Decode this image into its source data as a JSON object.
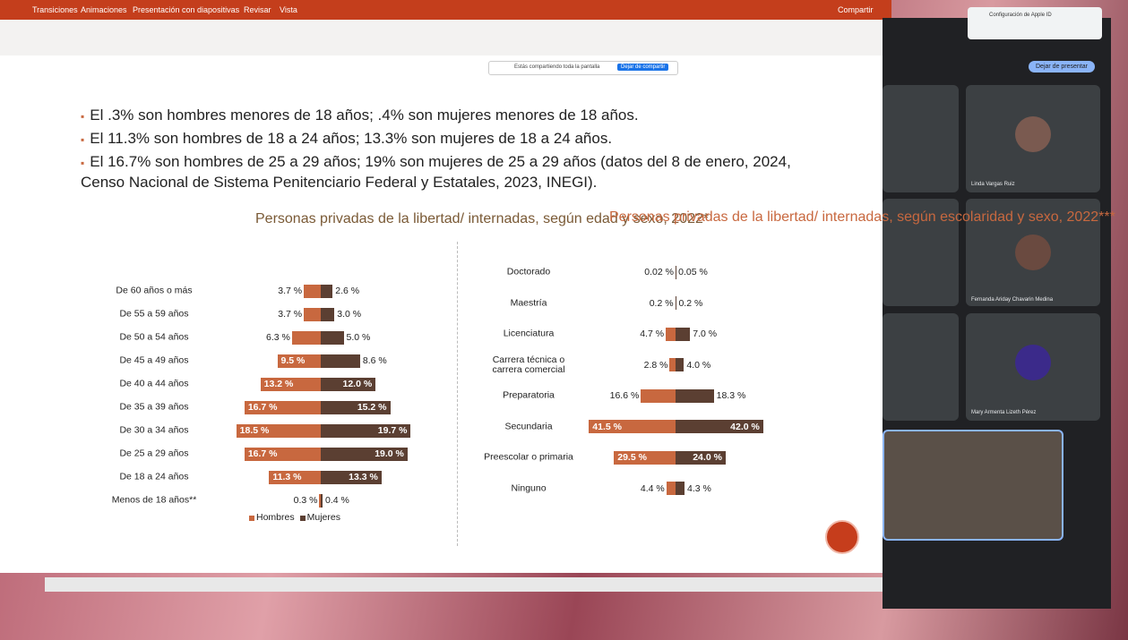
{
  "app": {
    "menu": [
      "Transiciones",
      "Animaciones",
      "Presentación con diapositivas",
      "Revisar",
      "Vista"
    ],
    "share_button": "Compartir",
    "share_bar": "Estás compartiendo toda la pantalla",
    "stop_share": "Dejar de compartir"
  },
  "slide": {
    "bullets": [
      "El .3% son hombres menores de 18 años; .4% son mujeres menores de 18 años.",
      "El 11.3% son hombres de 18 a 24 años; 13.3% son mujeres de 18 a 24 años.",
      "El 16.7% son hombres de 25 a 29 años; 19% son mujeres de 25 a 29 años (datos del 8 de enero, 2024, Censo Nacional de Sistema Penitenciario Federal y Estatales, 2023, INEGI)."
    ]
  },
  "chart_data": [
    {
      "type": "bar",
      "title": "Personas privadas de la libertad/ internadas,\nsegún edad y sexo, 2022*",
      "title_color": "#7a5a36",
      "categories": [
        "De 60 años o más",
        "De 55 a 59 años",
        "De 50 a 54 años",
        "De 45 a 49 años",
        "De 40 a 44 años",
        "De 35 a 39 años",
        "De 30 a 34 años",
        "De 25 a 29 años",
        "De 18 a 24 años",
        "Menos de 18 años**"
      ],
      "series": [
        {
          "name": "Hombres",
          "color": "#c8683f",
          "values": [
            3.7,
            3.7,
            6.3,
            9.5,
            13.2,
            16.7,
            18.5,
            16.7,
            11.3,
            0.3
          ],
          "value_labels": [
            "3.7 %",
            "3.7 %",
            "6.3 %",
            "9.5 %",
            "13.2 %",
            "16.7 %",
            "18.5 %",
            "16.7 %",
            "11.3 %",
            "0.3 %"
          ]
        },
        {
          "name": "Mujeres",
          "color": "#5b3f32",
          "values": [
            2.6,
            3.0,
            5.0,
            8.6,
            12.0,
            15.2,
            19.7,
            19.0,
            13.3,
            0.4
          ],
          "value_labels": [
            "2.6 %",
            "3.0 %",
            "5.0 %",
            "8.6 %",
            "12.0 %",
            "15.2 %",
            "19.7 %",
            "19.0 %",
            "13.3 %",
            "0.4 %"
          ]
        }
      ],
      "legend": "bottom"
    },
    {
      "type": "bar",
      "title": "Personas privadas de la libertad/ internadas,\nsegún escolaridad y sexo, 2022***",
      "title_color": "#c8683f",
      "categories": [
        "Doctorado",
        "Maestría",
        "Licenciatura",
        "Carrera técnica o\ncarrera comercial",
        "Preparatoria",
        "Secundaria",
        "Preescolar o primaria",
        "Ninguno"
      ],
      "series": [
        {
          "name": "Hombres",
          "color": "#c8683f",
          "values": [
            0.02,
            0.2,
            4.7,
            2.8,
            16.6,
            41.5,
            29.5,
            4.4
          ],
          "value_labels": [
            "0.02 %",
            "0.2 %",
            "4.7 %",
            "2.8 %",
            "16.6 %",
            "41.5 %",
            "29.5 %",
            "4.4 %"
          ]
        },
        {
          "name": "Mujeres",
          "color": "#5b3f32",
          "values": [
            0.05,
            0.2,
            7.0,
            4.0,
            18.3,
            42.0,
            24.0,
            4.3
          ],
          "value_labels": [
            "0.05 %",
            "0.2 %",
            "7.0 %",
            "4.0 %",
            "18.3 %",
            "42.0 %",
            "24.0 %",
            "4.3 %"
          ]
        }
      ]
    }
  ],
  "meeting": {
    "notification": "Configuración de Apple ID",
    "stop_presenting": "Dejar de presentar",
    "participants": [
      "Linda Vargas Ruiz",
      "Fernanda Ariday Chavarin Medina",
      "Mary Armenta Lizeth Pérez"
    ]
  }
}
